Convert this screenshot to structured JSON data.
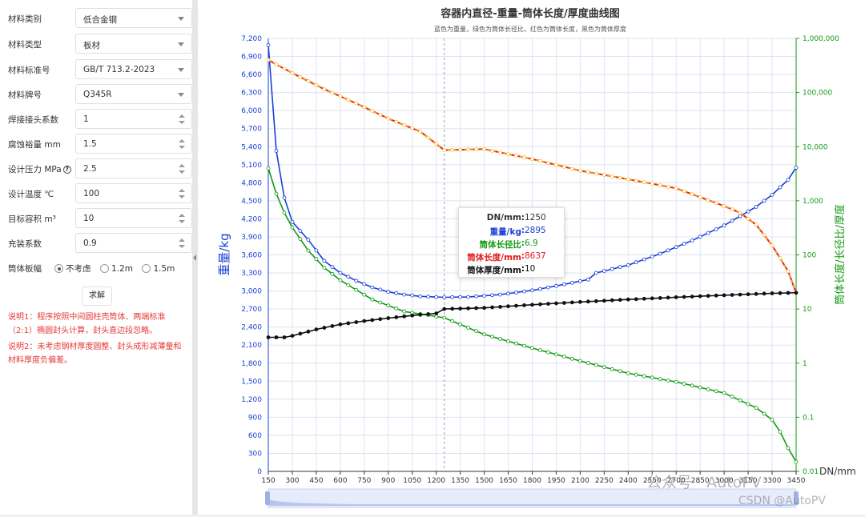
{
  "form": {
    "material_category": {
      "label": "材料类别",
      "value": "低合金钢"
    },
    "material_type": {
      "label": "材料类型",
      "value": "板材"
    },
    "material_standard": {
      "label": "材料标准号",
      "value": "GB/T 713.2-2023"
    },
    "material_grade": {
      "label": "材料牌号",
      "value": "Q345R"
    },
    "weld_joint_factor": {
      "label": "焊接接头系数",
      "value": "1"
    },
    "corrosion_allowance": {
      "label": "腐蚀裕量 mm",
      "value": "1.5"
    },
    "design_pressure": {
      "label": "设计压力 MPa",
      "value": "2.5"
    },
    "design_temperature": {
      "label": "设计温度 ℃",
      "value": "100"
    },
    "target_volume": {
      "label": "目标容积 m³",
      "value": "10"
    },
    "fill_factor": {
      "label": "充装系数",
      "value": "0.9"
    },
    "plate_width": {
      "label": "筒体板幅",
      "options": [
        "不考虑",
        "1.2m",
        "1.5m"
      ],
      "selected": "不考虑"
    },
    "solve_label": "求解",
    "note1": "说明1：程序按照中间圆柱壳筒体、两端标准（2:1）椭圆封头计算，封头直边段忽略。",
    "note2": "说明2：未考虑钢材厚度圆整、封头成形减薄量和材料厚度负偏差。"
  },
  "chart_data": {
    "type": "line",
    "title": "容器内直径-重量-筒体长度/厚度曲线图",
    "subtitle": "蓝色为重量，绿色为筒体长径比，红色为筒体长度，黑色为筒体厚度",
    "xlabel": "DN/mm",
    "ylabel_left": "重量/kg",
    "ylabel_right": "筒体长度/长径比/厚度",
    "xlim": [
      150,
      3450
    ],
    "x_ticks": [
      150,
      300,
      450,
      600,
      750,
      900,
      1050,
      1200,
      1350,
      1500,
      1650,
      1800,
      1950,
      2100,
      2250,
      2400,
      2550,
      2700,
      2850,
      3000,
      3150,
      3300,
      3450
    ],
    "ylim_left": [
      0,
      7200
    ],
    "y_ticks_left": [
      0,
      300,
      600,
      900,
      1200,
      1500,
      1800,
      2100,
      2400,
      2700,
      3000,
      3300,
      3600,
      3900,
      4200,
      4500,
      4800,
      5100,
      5400,
      5700,
      6000,
      6300,
      6600,
      6900,
      7200
    ],
    "ylim_right": [
      0.01,
      1000000
    ],
    "y_scale_right": "log",
    "y_ticks_right": [
      "0.01",
      "0.1",
      "1",
      "10",
      "100",
      "1,000",
      "10,000",
      "100,000",
      "1,000,000"
    ],
    "grid": true,
    "series": [
      {
        "name": "重量/kg",
        "color": "#1a3fd6",
        "axis": "left",
        "points": [
          [
            150,
            7090
          ],
          [
            200,
            5330
          ],
          [
            250,
            4550
          ],
          [
            300,
            4150
          ],
          [
            400,
            3850
          ],
          [
            500,
            3500
          ],
          [
            600,
            3300
          ],
          [
            700,
            3170
          ],
          [
            800,
            3060
          ],
          [
            900,
            2985
          ],
          [
            1000,
            2940
          ],
          [
            1100,
            2910
          ],
          [
            1250,
            2895
          ],
          [
            1400,
            2900
          ],
          [
            1600,
            2940
          ],
          [
            1800,
            3010
          ],
          [
            2000,
            3110
          ],
          [
            2150,
            3190
          ],
          [
            2200,
            3300
          ],
          [
            2400,
            3430
          ],
          [
            2600,
            3620
          ],
          [
            2800,
            3840
          ],
          [
            3000,
            4090
          ],
          [
            3200,
            4400
          ],
          [
            3300,
            4600
          ],
          [
            3400,
            4850
          ],
          [
            3450,
            5050
          ]
        ]
      },
      {
        "name": "筒体长径比",
        "color": "#139a13",
        "axis": "right",
        "points": [
          [
            150,
            4000
          ],
          [
            200,
            1350
          ],
          [
            250,
            600
          ],
          [
            300,
            320
          ],
          [
            400,
            120
          ],
          [
            500,
            58
          ],
          [
            600,
            34
          ],
          [
            800,
            15
          ],
          [
            1000,
            9
          ],
          [
            1250,
            6.9
          ],
          [
            1500,
            3.4
          ],
          [
            1800,
            1.9
          ],
          [
            2100,
            1.1
          ],
          [
            2400,
            0.65
          ],
          [
            2700,
            0.45
          ],
          [
            3000,
            0.28
          ],
          [
            3200,
            0.15
          ],
          [
            3300,
            0.09
          ],
          [
            3380,
            0.04
          ],
          [
            3430,
            0.015
          ]
        ]
      },
      {
        "name": "筒体长度/mm",
        "color": "#e31a1a",
        "axis": "right",
        "points": [
          [
            150,
            400000
          ],
          [
            200,
            330000
          ],
          [
            300,
            230000
          ],
          [
            500,
            115000
          ],
          [
            700,
            63000
          ],
          [
            900,
            33000
          ],
          [
            1100,
            19000
          ],
          [
            1250,
            8637
          ],
          [
            1500,
            9000
          ],
          [
            1800,
            5900
          ],
          [
            2100,
            3600
          ],
          [
            2400,
            2500
          ],
          [
            2700,
            1700
          ],
          [
            3000,
            800
          ],
          [
            3100,
            600
          ],
          [
            3200,
            360
          ],
          [
            3300,
            150
          ],
          [
            3400,
            50
          ],
          [
            3450,
            20
          ]
        ]
      },
      {
        "name": "筒体厚度/mm",
        "color": "#111111",
        "axis": "right",
        "points": [
          [
            150,
            3
          ],
          [
            250,
            3
          ],
          [
            300,
            3.2
          ],
          [
            450,
            4.2
          ],
          [
            600,
            5.2
          ],
          [
            750,
            6
          ],
          [
            900,
            6.8
          ],
          [
            1050,
            7.6
          ],
          [
            1200,
            8.3
          ],
          [
            1250,
            10
          ],
          [
            1500,
            10.5
          ],
          [
            1800,
            12
          ],
          [
            2100,
            13.5
          ],
          [
            2400,
            15
          ],
          [
            2700,
            16.5
          ],
          [
            3000,
            18
          ],
          [
            3300,
            19.5
          ],
          [
            3450,
            20
          ]
        ]
      }
    ],
    "tooltip": [
      {
        "label": "DN/mm",
        "value": "1250",
        "color": "#333333"
      },
      {
        "label": "重量/kg",
        "value": "2895",
        "color": "#1a3fd6"
      },
      {
        "label": "筒体长径比",
        "value": "6.9",
        "color": "#139a13"
      },
      {
        "label": "筒体长度/mm",
        "value": "8637",
        "color": "#e31a1a"
      },
      {
        "label": "筒体厚度/mm",
        "value": "10",
        "color": "#111111"
      }
    ],
    "crosshair_x": 1250
  },
  "watermark": {
    "line1": "公众号 · AutoPV",
    "line2": "CSDN @AutoPV"
  }
}
